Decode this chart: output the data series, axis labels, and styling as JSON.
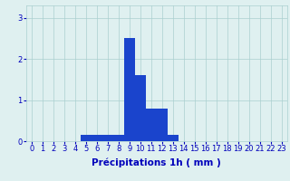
{
  "categories": [
    0,
    1,
    2,
    3,
    4,
    5,
    6,
    7,
    8,
    9,
    10,
    11,
    12,
    13,
    14,
    15,
    16,
    17,
    18,
    19,
    20,
    21,
    22,
    23
  ],
  "values": [
    0,
    0,
    0,
    0,
    0,
    0.15,
    0.15,
    0.15,
    0.15,
    2.5,
    1.6,
    0.8,
    0.8,
    0.15,
    0,
    0,
    0,
    0,
    0,
    0,
    0,
    0,
    0,
    0
  ],
  "bar_color": "#1a44cc",
  "background_color": "#dff0f0",
  "grid_color": "#aacfcf",
  "xlabel": "Précipitations 1h ( mm )",
  "ylim": [
    0,
    3.3
  ],
  "xlim": [
    -0.5,
    23.5
  ],
  "yticks": [
    0,
    1,
    2,
    3
  ],
  "xticks": [
    0,
    1,
    2,
    3,
    4,
    5,
    6,
    7,
    8,
    9,
    10,
    11,
    12,
    13,
    14,
    15,
    16,
    17,
    18,
    19,
    20,
    21,
    22,
    23
  ],
  "tick_fontsize": 6,
  "xlabel_fontsize": 7.5,
  "tick_color": "#0000bb",
  "xlabel_color": "#0000bb"
}
